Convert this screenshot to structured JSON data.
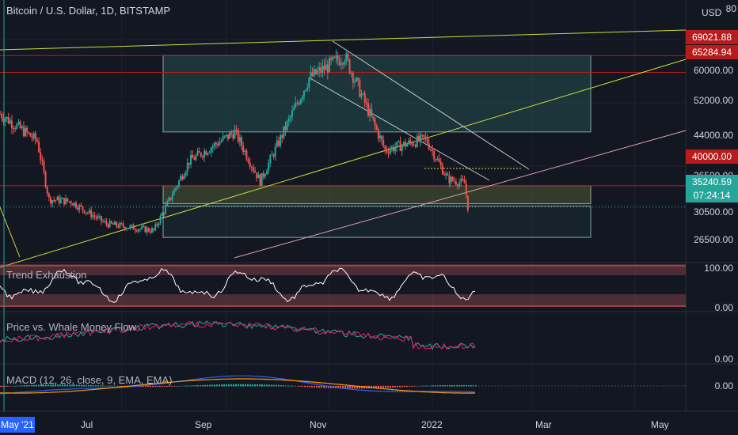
{
  "symbol": "Bitcoin / U.S. Dollar, 1D, BITSTAMP",
  "currency": "USD",
  "price_scale_ticks": [
    "60000.00",
    "52000.00",
    "44000.00",
    "36500.00",
    "30500.00",
    "26500.00"
  ],
  "price_labels": [
    {
      "text": "69021.88",
      "bg": "#b71c1c"
    },
    {
      "text": "65284.94",
      "bg": "#b71c1c"
    },
    {
      "text": "40000.00",
      "bg": "#b71c1c"
    },
    {
      "text": "35240.59",
      "bg": "#26a69a"
    },
    {
      "text": "07:24:14",
      "bg": "#26a69a"
    }
  ],
  "top_tick_partial": "80",
  "indicators": [
    {
      "name": "Trend Exhaustion",
      "ticks": [
        "100.00",
        "0.00"
      ]
    },
    {
      "name": "Price vs. Whale Money Flow",
      "ticks": [
        "0.00"
      ]
    },
    {
      "name": "MACD (12, 26, close, 9, EMA, EMA)",
      "ticks": [
        "0.00"
      ]
    }
  ],
  "time_axis": {
    "first_badge": "May '21",
    "labels": [
      "Jul",
      "Sep",
      "Nov",
      "2022",
      "Mar",
      "May"
    ]
  },
  "chart_data": {
    "type": "candlestick",
    "title": "Bitcoin / U.S. Dollar, 1D, BITSTAMP",
    "x_range": [
      "2021-04-20",
      "2022-05-31"
    ],
    "y_range": [
      22000,
      80000
    ],
    "last_price": 35240.59,
    "countdown": "07:24:14",
    "monthly_path": [
      [
        "2021-04-20",
        56000
      ],
      [
        "2021-05-12",
        50000
      ],
      [
        "2021-05-19",
        37000
      ],
      [
        "2021-06-01",
        36500
      ],
      [
        "2021-06-22",
        31500
      ],
      [
        "2021-07-20",
        30000
      ],
      [
        "2021-08-10",
        45500
      ],
      [
        "2021-09-06",
        52000
      ],
      [
        "2021-09-21",
        41000
      ],
      [
        "2021-10-20",
        64000
      ],
      [
        "2021-11-10",
        69000
      ],
      [
        "2021-12-04",
        48000
      ],
      [
        "2021-12-28",
        50500
      ],
      [
        "2022-01-10",
        41500
      ],
      [
        "2022-01-20",
        40500
      ],
      [
        "2022-01-22",
        35240
      ]
    ],
    "horizontal_levels": [
      69021.88,
      65284.94,
      40000.0
    ],
    "indicators": {
      "trend_exhaustion_range": [
        0,
        100
      ],
      "macd_zero": 0
    }
  },
  "colors": {
    "up": "#26a69a",
    "down": "#ef5350",
    "yellow_line": "#cddc39",
    "pink_line": "#e1a0b0",
    "box_fill": "#2c6e6a",
    "red_level": "#b71c1c"
  }
}
